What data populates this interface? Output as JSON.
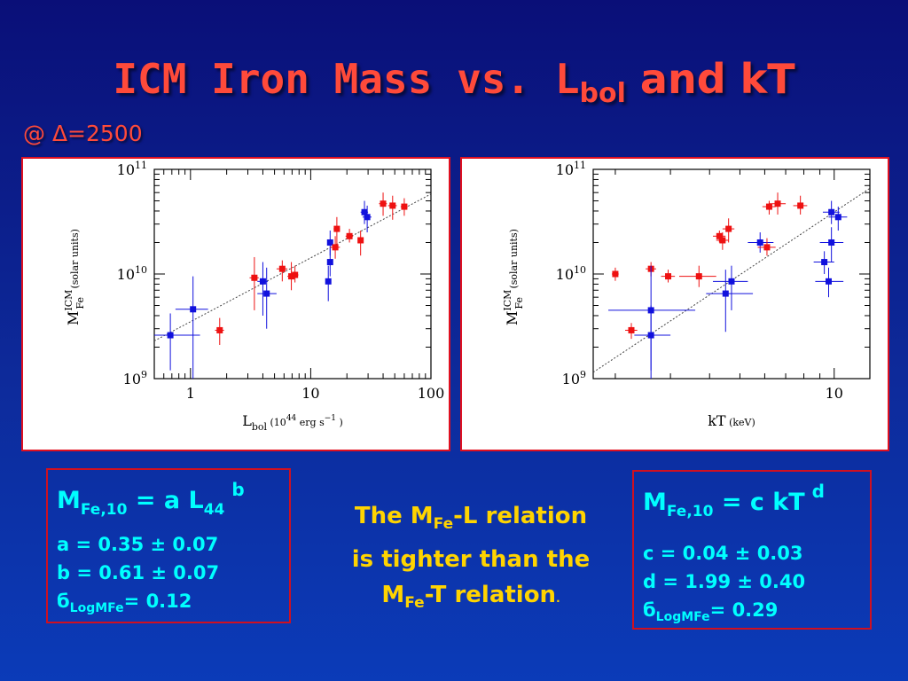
{
  "slide": {
    "title_main": "ICM Iron Mass vs. L",
    "title_sub": "bol",
    "title_tail": " and kT",
    "delta": "@ Δ=2500"
  },
  "box_left": {
    "eq_m": "M",
    "eq_m_sub": "Fe,10",
    "eq_mid": " = a L",
    "eq_l_sub": "44",
    "eq_exp": "b",
    "p1": "a = 0.35 ± 0.07",
    "p2": "b = 0.61 ± 0.07",
    "p3_sym": "б",
    "p3_sub": "LogMFe",
    "p3_val": "= 0.12"
  },
  "box_right": {
    "eq_m": "M",
    "eq_m_sub": "Fe,10",
    "eq_mid": " = c kT",
    "eq_exp": "d",
    "p1": "c = 0.04 ± 0.03",
    "p2": "d = 1.99 ± 0.40",
    "p3_sym": "б",
    "p3_sub": "LogMFe",
    "p3_val": "= 0.29"
  },
  "middle": {
    "l1a": "The M",
    "l1sub": "Fe",
    "l1b": "-L relation",
    "l2": "is tighter than the",
    "l3a": "M",
    "l3sub": "Fe",
    "l3b": "-T relation",
    "l3dot": "."
  },
  "colors": {
    "red_points": "#ee1111",
    "blue_points": "#1111dd",
    "fit_line": "#444444"
  },
  "chart_data": [
    {
      "type": "scatter",
      "xscale": "log",
      "yscale": "log",
      "xlim": [
        0.5,
        100
      ],
      "ylim": [
        1000000000.0,
        100000000000.0
      ],
      "xticks": [
        {
          "v": 1,
          "label": "1"
        },
        {
          "v": 10,
          "label": "10"
        },
        {
          "v": 100,
          "label": "100"
        }
      ],
      "yticks": [
        {
          "v": 1000000000.0,
          "base": "10",
          "exp": "9"
        },
        {
          "v": 10000000000.0,
          "base": "10",
          "exp": "10"
        },
        {
          "v": 100000000000.0,
          "base": "10",
          "exp": "11"
        }
      ],
      "xlabel_main": "L",
      "xlabel_sub": "bol",
      "xlabel_unit_a": "(10",
      "xlabel_unit_exp": "44",
      "xlabel_unit_b": " erg s",
      "xlabel_unit_exp2": "−1",
      "xlabel_unit_c": " )",
      "ylabel_main": "M",
      "ylabel_sup": "ICM",
      "ylabel_sub": "Fe",
      "ylabel_unit": "(solar units)",
      "fit": {
        "a": 0.35,
        "b": 0.61
      },
      "points": [
        {
          "x": 0.68,
          "y": 2600000000.0,
          "xl": 0.5,
          "xh": 1.2,
          "yl": 1200000000.0,
          "yh": 4200000000.0,
          "c": "blue"
        },
        {
          "x": 1.05,
          "y": 4600000000.0,
          "xl": 0.75,
          "xh": 1.4,
          "yl": 1000000000.0,
          "yh": 9500000000.0,
          "c": "blue"
        },
        {
          "x": 1.75,
          "y": 2900000000.0,
          "xl": 1.6,
          "xh": 1.9,
          "yl": 2100000000.0,
          "yh": 3800000000.0,
          "c": "red"
        },
        {
          "x": 3.4,
          "y": 9200000000.0,
          "xl": 3.1,
          "xh": 3.7,
          "yl": 4500000000.0,
          "yh": 14500000000.0,
          "c": "red"
        },
        {
          "x": 4.0,
          "y": 8500000000.0,
          "xl": 3.6,
          "xh": 4.4,
          "yl": 4000000000.0,
          "yh": 13000000000.0,
          "c": "blue"
        },
        {
          "x": 4.3,
          "y": 6500000000.0,
          "xl": 3.6,
          "xh": 5.2,
          "yl": 3000000000.0,
          "yh": 11500000000.0,
          "c": "blue"
        },
        {
          "x": 5.8,
          "y": 11200000000.0,
          "xl": 5.2,
          "xh": 6.4,
          "yl": 8500000000.0,
          "yh": 13500000000.0,
          "c": "red"
        },
        {
          "x": 6.9,
          "y": 9500000000.0,
          "xl": 6.4,
          "xh": 7.4,
          "yl": 7000000000.0,
          "yh": 13000000000.0,
          "c": "red"
        },
        {
          "x": 7.4,
          "y": 9800000000.0,
          "xl": 6.9,
          "xh": 7.9,
          "yl": 8300000000.0,
          "yh": 12000000000.0,
          "c": "red"
        },
        {
          "x": 14.0,
          "y": 8500000000.0,
          "xl": 13.3,
          "xh": 14.7,
          "yl": 5500000000.0,
          "yh": 12000000000.0,
          "c": "blue"
        },
        {
          "x": 14.5,
          "y": 13000000000.0,
          "xl": 13.8,
          "xh": 15.2,
          "yl": 9500000000.0,
          "yh": 17500000000.0,
          "c": "blue"
        },
        {
          "x": 14.5,
          "y": 20000000000.0,
          "xl": 13.8,
          "xh": 15.2,
          "yl": 15000000000.0,
          "yh": 26000000000.0,
          "c": "blue"
        },
        {
          "x": 16.0,
          "y": 18000000000.0,
          "xl": 14.5,
          "xh": 17.5,
          "yl": 14000000000.0,
          "yh": 23000000000.0,
          "c": "red"
        },
        {
          "x": 16.5,
          "y": 27000000000.0,
          "xl": 15.5,
          "xh": 17.5,
          "yl": 18000000000.0,
          "yh": 35000000000.0,
          "c": "red"
        },
        {
          "x": 21.0,
          "y": 23000000000.0,
          "xl": 19.5,
          "xh": 22.5,
          "yl": 20000000000.0,
          "yh": 27000000000.0,
          "c": "red"
        },
        {
          "x": 26.0,
          "y": 21000000000.0,
          "xl": 25.0,
          "xh": 27.0,
          "yl": 15000000000.0,
          "yh": 26000000000.0,
          "c": "red"
        },
        {
          "x": 28.0,
          "y": 39000000000.0,
          "xl": 26.0,
          "xh": 30.0,
          "yl": 30000000000.0,
          "yh": 50000000000.0,
          "c": "blue"
        },
        {
          "x": 29.5,
          "y": 35000000000.0,
          "xl": 27.0,
          "xh": 32.0,
          "yl": 25000000000.0,
          "yh": 45000000000.0,
          "c": "blue"
        },
        {
          "x": 40.0,
          "y": 47000000000.0,
          "xl": 37.0,
          "xh": 43.0,
          "yl": 36000000000.0,
          "yh": 60000000000.0,
          "c": "red"
        },
        {
          "x": 48.0,
          "y": 45000000000.0,
          "xl": 44.0,
          "xh": 52.0,
          "yl": 33000000000.0,
          "yh": 56000000000.0,
          "c": "red"
        },
        {
          "x": 60.0,
          "y": 44000000000.0,
          "xl": 56.0,
          "xh": 64.0,
          "yl": 36000000000.0,
          "yh": 53000000000.0,
          "c": "red"
        }
      ]
    },
    {
      "type": "scatter",
      "xscale": "log",
      "yscale": "log",
      "xlim": [
        1.7,
        13
      ],
      "ylim": [
        1000000000.0,
        100000000000.0
      ],
      "xticks": [
        {
          "v": 10,
          "label": "10"
        }
      ],
      "yticks": [
        {
          "v": 1000000000.0,
          "base": "10",
          "exp": "9"
        },
        {
          "v": 10000000000.0,
          "base": "10",
          "exp": "10"
        },
        {
          "v": 100000000000.0,
          "base": "10",
          "exp": "11"
        }
      ],
      "xlabel_main": "kT",
      "xlabel_unit": "(keV)",
      "ylabel_main": "M",
      "ylabel_sup": "ICM",
      "ylabel_sub": "Fe",
      "ylabel_unit": "(solar units)",
      "fit": {
        "c": 0.04,
        "d": 1.99
      },
      "points": [
        {
          "x": 2.0,
          "y": 10000000000.0,
          "xl": 1.95,
          "xh": 2.05,
          "yl": 8600000000.0,
          "yh": 11500000000.0,
          "c": "red"
        },
        {
          "x": 2.25,
          "y": 2900000000.0,
          "xl": 2.15,
          "xh": 2.35,
          "yl": 2400000000.0,
          "yh": 3400000000.0,
          "c": "red"
        },
        {
          "x": 2.6,
          "y": 11200000000.0,
          "xl": 2.5,
          "xh": 2.7,
          "yl": 9500000000.0,
          "yh": 13000000000.0,
          "c": "red"
        },
        {
          "x": 2.6,
          "y": 4500000000.0,
          "xl": 1.9,
          "xh": 3.6,
          "yl": 1000000000.0,
          "yh": 12000000000.0,
          "c": "blue"
        },
        {
          "x": 2.6,
          "y": 2600000000.0,
          "xl": 2.3,
          "xh": 3.0,
          "yl": 1200000000.0,
          "yh": 5000000000.0,
          "c": "blue"
        },
        {
          "x": 2.95,
          "y": 9500000000.0,
          "xl": 2.8,
          "xh": 3.1,
          "yl": 8300000000.0,
          "yh": 11000000000.0,
          "c": "red"
        },
        {
          "x": 3.7,
          "y": 9500000000.0,
          "xl": 3.2,
          "xh": 4.2,
          "yl": 7500000000.0,
          "yh": 12000000000.0,
          "c": "red"
        },
        {
          "x": 4.3,
          "y": 23000000000.0,
          "xl": 4.1,
          "xh": 4.5,
          "yl": 20000000000.0,
          "yh": 26000000000.0,
          "c": "red"
        },
        {
          "x": 4.4,
          "y": 21000000000.0,
          "xl": 4.2,
          "xh": 4.6,
          "yl": 17000000000.0,
          "yh": 25000000000.0,
          "c": "red"
        },
        {
          "x": 4.6,
          "y": 27000000000.0,
          "xl": 4.4,
          "xh": 4.8,
          "yl": 20000000000.0,
          "yh": 34000000000.0,
          "c": "red"
        },
        {
          "x": 4.7,
          "y": 8500000000.0,
          "xl": 4.1,
          "xh": 5.3,
          "yl": 4500000000.0,
          "yh": 12000000000.0,
          "c": "blue"
        },
        {
          "x": 4.5,
          "y": 6500000000.0,
          "xl": 3.9,
          "xh": 5.5,
          "yl": 2800000000.0,
          "yh": 11000000000.0,
          "c": "blue"
        },
        {
          "x": 5.8,
          "y": 20000000000.0,
          "xl": 5.3,
          "xh": 6.4,
          "yl": 16000000000.0,
          "yh": 25000000000.0,
          "c": "blue"
        },
        {
          "x": 6.1,
          "y": 18000000000.0,
          "xl": 5.7,
          "xh": 6.5,
          "yl": 15000000000.0,
          "yh": 22000000000.0,
          "c": "red"
        },
        {
          "x": 6.2,
          "y": 44000000000.0,
          "xl": 5.9,
          "xh": 6.5,
          "yl": 37000000000.0,
          "yh": 50000000000.0,
          "c": "red"
        },
        {
          "x": 6.6,
          "y": 47000000000.0,
          "xl": 6.2,
          "xh": 7.0,
          "yl": 37000000000.0,
          "yh": 60000000000.0,
          "c": "red"
        },
        {
          "x": 7.8,
          "y": 45000000000.0,
          "xl": 7.4,
          "xh": 8.2,
          "yl": 37000000000.0,
          "yh": 56000000000.0,
          "c": "red"
        },
        {
          "x": 9.3,
          "y": 13000000000.0,
          "xl": 8.6,
          "xh": 10.0,
          "yl": 10000000000.0,
          "yh": 16500000000.0,
          "c": "blue"
        },
        {
          "x": 9.6,
          "y": 8500000000.0,
          "xl": 8.7,
          "xh": 10.7,
          "yl": 6000000000.0,
          "yh": 11500000000.0,
          "c": "blue"
        },
        {
          "x": 9.8,
          "y": 39000000000.0,
          "xl": 9.2,
          "xh": 10.4,
          "yl": 30000000000.0,
          "yh": 50000000000.0,
          "c": "blue"
        },
        {
          "x": 9.8,
          "y": 20000000000.0,
          "xl": 9.0,
          "xh": 10.7,
          "yl": 13000000000.0,
          "yh": 28000000000.0,
          "c": "blue"
        },
        {
          "x": 10.3,
          "y": 35000000000.0,
          "xl": 9.6,
          "xh": 11.0,
          "yl": 26000000000.0,
          "yh": 44000000000.0,
          "c": "blue"
        }
      ]
    }
  ]
}
